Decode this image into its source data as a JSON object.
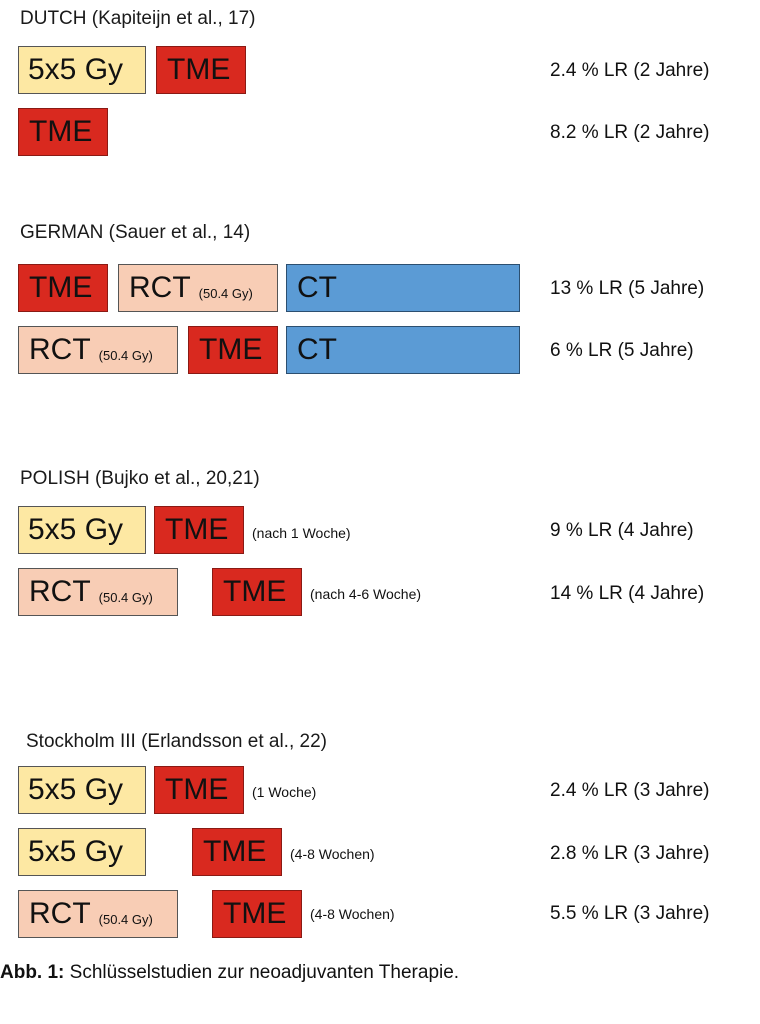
{
  "studies": [
    {
      "title": "DUTCH (Kapiteijn et al., 17)",
      "rows": [
        {
          "boxes": [
            {
              "label": "5x5 Gy",
              "sub": ""
            },
            {
              "label": "TME",
              "sub": ""
            }
          ],
          "note": "",
          "result": "2.4 % LR (2 Jahre)"
        },
        {
          "boxes": [
            {
              "label": "TME",
              "sub": ""
            }
          ],
          "note": "",
          "result": "8.2 % LR (2 Jahre)"
        }
      ]
    },
    {
      "title": "GERMAN (Sauer et al., 14)",
      "rows": [
        {
          "boxes": [
            {
              "label": "TME",
              "sub": ""
            },
            {
              "label": "RCT",
              "sub": "(50.4 Gy)"
            },
            {
              "label": "CT",
              "sub": ""
            }
          ],
          "note": "",
          "result": "13 % LR (5 Jahre)"
        },
        {
          "boxes": [
            {
              "label": "RCT",
              "sub": "(50.4 Gy)"
            },
            {
              "label": "TME",
              "sub": ""
            },
            {
              "label": "CT",
              "sub": ""
            }
          ],
          "note": "",
          "result": "6 % LR (5 Jahre)"
        }
      ]
    },
    {
      "title": "POLISH (Bujko et al., 20,21)",
      "rows": [
        {
          "boxes": [
            {
              "label": "5x5 Gy",
              "sub": ""
            },
            {
              "label": "TME",
              "sub": ""
            }
          ],
          "note": "(nach 1 Woche)",
          "result": "9 % LR (4 Jahre)"
        },
        {
          "boxes": [
            {
              "label": "RCT",
              "sub": "(50.4 Gy)"
            },
            {
              "label": "TME",
              "sub": ""
            }
          ],
          "note": "(nach 4-6 Woche)",
          "result": "14 % LR (4 Jahre)"
        }
      ]
    },
    {
      "title": "Stockholm III (Erlandsson et al., 22)",
      "rows": [
        {
          "boxes": [
            {
              "label": "5x5 Gy",
              "sub": ""
            },
            {
              "label": "TME",
              "sub": ""
            }
          ],
          "note": "(1 Woche)",
          "result": "2.4 % LR (3 Jahre)"
        },
        {
          "boxes": [
            {
              "label": "5x5 Gy",
              "sub": ""
            },
            {
              "label": "TME",
              "sub": ""
            }
          ],
          "note": "(4-8 Wochen)",
          "result": "2.8 % LR (3 Jahre)"
        },
        {
          "boxes": [
            {
              "label": "RCT",
              "sub": "(50.4 Gy)"
            },
            {
              "label": "TME",
              "sub": ""
            }
          ],
          "note": "(4-8 Wochen)",
          "result": "5.5 % LR (3 Jahre)"
        }
      ]
    }
  ],
  "caption": {
    "label": "Abb. 1:",
    "text": " Schlüsselstudien zur neoadjuvanten Therapie."
  }
}
